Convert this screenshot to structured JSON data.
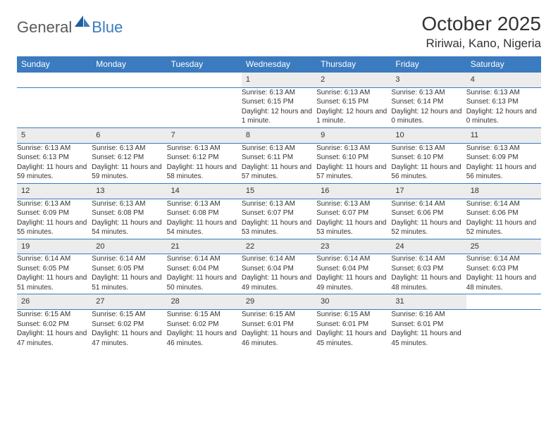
{
  "logo": {
    "general": "General",
    "blue": "Blue"
  },
  "title": "October 2025",
  "location": "Ririwai, Kano, Nigeria",
  "header_color": "#3b7bbf",
  "header_text_color": "#ffffff",
  "daynum_bg": "#ececec",
  "rule_color": "#3b7bbf",
  "font_size_body": 10,
  "font_size_header": 12,
  "font_size_title": 28,
  "font_size_location": 17,
  "day_headers": [
    "Sunday",
    "Monday",
    "Tuesday",
    "Wednesday",
    "Thursday",
    "Friday",
    "Saturday"
  ],
  "weeks": [
    [
      null,
      null,
      null,
      {
        "n": "1",
        "sr": "6:13 AM",
        "ss": "6:15 PM",
        "dl": "12 hours and 1 minute."
      },
      {
        "n": "2",
        "sr": "6:13 AM",
        "ss": "6:15 PM",
        "dl": "12 hours and 1 minute."
      },
      {
        "n": "3",
        "sr": "6:13 AM",
        "ss": "6:14 PM",
        "dl": "12 hours and 0 minutes."
      },
      {
        "n": "4",
        "sr": "6:13 AM",
        "ss": "6:13 PM",
        "dl": "12 hours and 0 minutes."
      }
    ],
    [
      {
        "n": "5",
        "sr": "6:13 AM",
        "ss": "6:13 PM",
        "dl": "11 hours and 59 minutes."
      },
      {
        "n": "6",
        "sr": "6:13 AM",
        "ss": "6:12 PM",
        "dl": "11 hours and 59 minutes."
      },
      {
        "n": "7",
        "sr": "6:13 AM",
        "ss": "6:12 PM",
        "dl": "11 hours and 58 minutes."
      },
      {
        "n": "8",
        "sr": "6:13 AM",
        "ss": "6:11 PM",
        "dl": "11 hours and 57 minutes."
      },
      {
        "n": "9",
        "sr": "6:13 AM",
        "ss": "6:10 PM",
        "dl": "11 hours and 57 minutes."
      },
      {
        "n": "10",
        "sr": "6:13 AM",
        "ss": "6:10 PM",
        "dl": "11 hours and 56 minutes."
      },
      {
        "n": "11",
        "sr": "6:13 AM",
        "ss": "6:09 PM",
        "dl": "11 hours and 56 minutes."
      }
    ],
    [
      {
        "n": "12",
        "sr": "6:13 AM",
        "ss": "6:09 PM",
        "dl": "11 hours and 55 minutes."
      },
      {
        "n": "13",
        "sr": "6:13 AM",
        "ss": "6:08 PM",
        "dl": "11 hours and 54 minutes."
      },
      {
        "n": "14",
        "sr": "6:13 AM",
        "ss": "6:08 PM",
        "dl": "11 hours and 54 minutes."
      },
      {
        "n": "15",
        "sr": "6:13 AM",
        "ss": "6:07 PM",
        "dl": "11 hours and 53 minutes."
      },
      {
        "n": "16",
        "sr": "6:13 AM",
        "ss": "6:07 PM",
        "dl": "11 hours and 53 minutes."
      },
      {
        "n": "17",
        "sr": "6:14 AM",
        "ss": "6:06 PM",
        "dl": "11 hours and 52 minutes."
      },
      {
        "n": "18",
        "sr": "6:14 AM",
        "ss": "6:06 PM",
        "dl": "11 hours and 52 minutes."
      }
    ],
    [
      {
        "n": "19",
        "sr": "6:14 AM",
        "ss": "6:05 PM",
        "dl": "11 hours and 51 minutes."
      },
      {
        "n": "20",
        "sr": "6:14 AM",
        "ss": "6:05 PM",
        "dl": "11 hours and 51 minutes."
      },
      {
        "n": "21",
        "sr": "6:14 AM",
        "ss": "6:04 PM",
        "dl": "11 hours and 50 minutes."
      },
      {
        "n": "22",
        "sr": "6:14 AM",
        "ss": "6:04 PM",
        "dl": "11 hours and 49 minutes."
      },
      {
        "n": "23",
        "sr": "6:14 AM",
        "ss": "6:04 PM",
        "dl": "11 hours and 49 minutes."
      },
      {
        "n": "24",
        "sr": "6:14 AM",
        "ss": "6:03 PM",
        "dl": "11 hours and 48 minutes."
      },
      {
        "n": "25",
        "sr": "6:14 AM",
        "ss": "6:03 PM",
        "dl": "11 hours and 48 minutes."
      }
    ],
    [
      {
        "n": "26",
        "sr": "6:15 AM",
        "ss": "6:02 PM",
        "dl": "11 hours and 47 minutes."
      },
      {
        "n": "27",
        "sr": "6:15 AM",
        "ss": "6:02 PM",
        "dl": "11 hours and 47 minutes."
      },
      {
        "n": "28",
        "sr": "6:15 AM",
        "ss": "6:02 PM",
        "dl": "11 hours and 46 minutes."
      },
      {
        "n": "29",
        "sr": "6:15 AM",
        "ss": "6:01 PM",
        "dl": "11 hours and 46 minutes."
      },
      {
        "n": "30",
        "sr": "6:15 AM",
        "ss": "6:01 PM",
        "dl": "11 hours and 45 minutes."
      },
      {
        "n": "31",
        "sr": "6:16 AM",
        "ss": "6:01 PM",
        "dl": "11 hours and 45 minutes."
      },
      null
    ]
  ],
  "labels": {
    "sunrise": "Sunrise: ",
    "sunset": "Sunset: ",
    "daylight": "Daylight: "
  }
}
